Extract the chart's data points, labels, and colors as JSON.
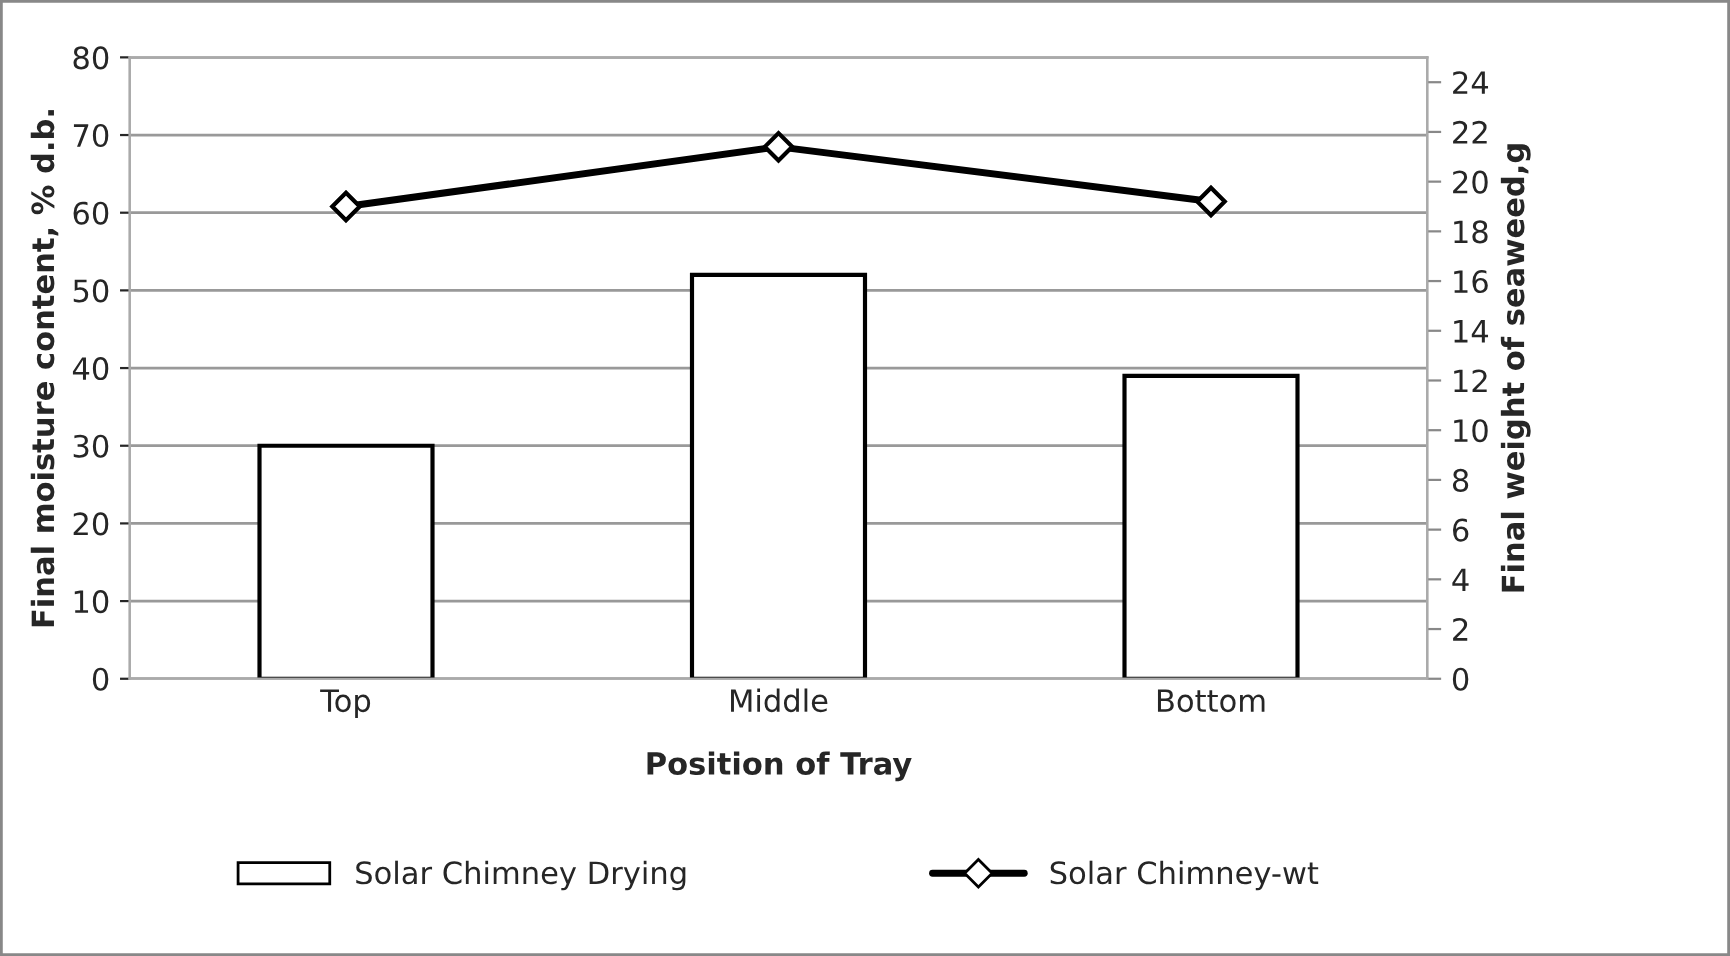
{
  "chart_data": {
    "type": "bar",
    "xlabel": "Position of Tray",
    "ylabel": "Final moisture content, % d.b.",
    "y2label": "Final weight of seaweed,g",
    "categories": [
      "Top",
      "Middle",
      "Bottom"
    ],
    "series": [
      {
        "name": "Solar Chimney Drying",
        "color": "#ffffff",
        "values": [
          30,
          52,
          39
        ]
      },
      {
        "name": "Solar Chimney-wt",
        "type": "line",
        "axis": "y2",
        "color": "#000000",
        "marker": "diamond",
        "values": [
          19.0,
          21.4,
          19.2
        ]
      }
    ],
    "ylim": [
      0,
      80
    ],
    "yticks": [
      0,
      10,
      20,
      30,
      40,
      50,
      60,
      70,
      80
    ],
    "y2lim": [
      0,
      25
    ],
    "y2ticks": [
      0,
      2,
      4,
      6,
      8,
      10,
      12,
      14,
      16,
      18,
      20,
      22,
      24
    ],
    "grid": "y",
    "legend": "bottom"
  }
}
